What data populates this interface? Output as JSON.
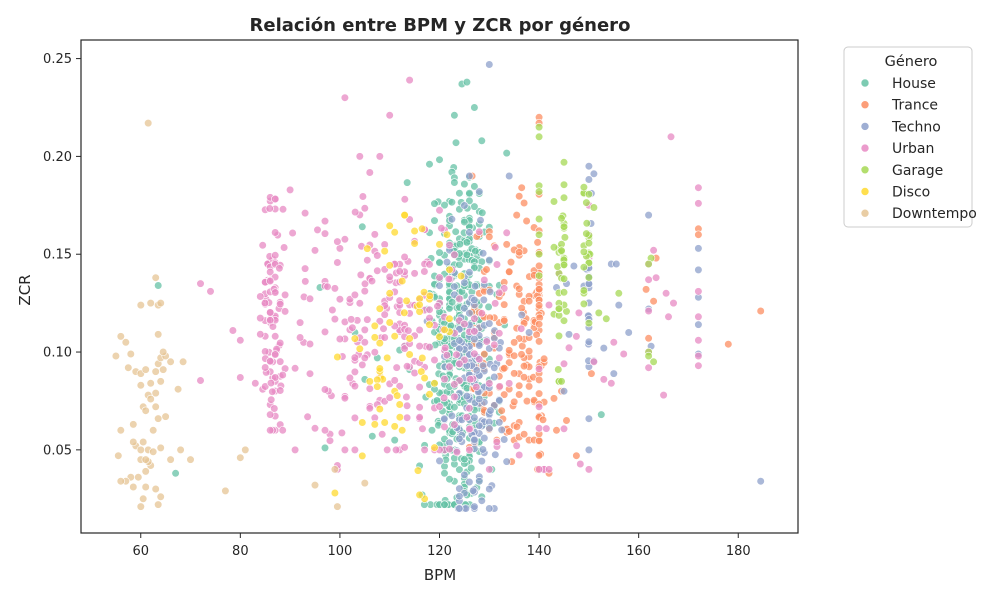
{
  "chart_data": {
    "type": "scatter",
    "title": "Relación entre BPM y ZCR por género",
    "xlabel": "BPM",
    "ylabel": "ZCR",
    "xlim": [
      48,
      192
    ],
    "ylim": [
      0.0075,
      0.2595
    ],
    "xticks": [
      60,
      80,
      100,
      120,
      140,
      160,
      180
    ],
    "yticks": [
      0.05,
      0.1,
      0.15,
      0.2,
      0.25
    ],
    "ytick_labels": [
      "0.05",
      "0.10",
      "0.15",
      "0.20",
      "0.25"
    ],
    "grid": false,
    "legend": {
      "title": "Género",
      "position": "outside-top-right"
    },
    "series": [
      {
        "name": "House",
        "color": "#66c2a5",
        "clusters": [
          {
            "x": 124,
            "xs": 3,
            "y": 0.105,
            "ys": 0.045,
            "n": 420,
            "yc": [
              0.022,
              0.208
            ]
          }
        ],
        "points": [
          [
            63.5,
            0.134
          ],
          [
            67,
            0.038
          ],
          [
            97,
            0.051
          ],
          [
            104.5,
            0.164
          ],
          [
            118,
            0.196
          ],
          [
            123,
            0.221
          ],
          [
            124.5,
            0.237
          ],
          [
            125.5,
            0.238
          ],
          [
            127,
            0.225
          ],
          [
            118.5,
            0.06
          ],
          [
            122,
            0.035
          ],
          [
            125.5,
            0.027
          ],
          [
            128.5,
            0.026
          ],
          [
            116.5,
            0.027
          ],
          [
            152.5,
            0.068
          ],
          [
            106.5,
            0.057
          ],
          [
            105,
            0.086
          ],
          [
            114,
            0.091
          ],
          [
            111,
            0.055
          ],
          [
            112,
            0.101
          ],
          [
            113,
            0.103
          ],
          [
            103,
            0.11
          ],
          [
            107.5,
            0.097
          ],
          [
            96,
            0.133
          ],
          [
            119,
            0.081
          ],
          [
            130.5,
            0.04
          ],
          [
            121,
            0.038
          ],
          [
            131,
            0.072
          ]
        ]
      },
      {
        "name": "Trance",
        "color": "#fc8d62",
        "clusters": [
          {
            "x": 136,
            "xs": 2.5,
            "y": 0.105,
            "ys": 0.035,
            "n": 90,
            "yc": [
              0.055,
              0.19
            ]
          },
          {
            "x": 140,
            "xs": 0.5,
            "y": 0.11,
            "ys": 0.035,
            "n": 50,
            "yc": [
              0.04,
              0.222
            ]
          },
          {
            "x": 128.5,
            "xs": 1.2,
            "y": 0.11,
            "ys": 0.03,
            "n": 40,
            "yc": [
              0.04,
              0.19
            ]
          }
        ],
        "points": [
          [
            140,
            0.22
          ],
          [
            140,
            0.217
          ],
          [
            142,
            0.038
          ],
          [
            147.5,
            0.047
          ],
          [
            143.5,
            0.06
          ],
          [
            144.5,
            0.08
          ],
          [
            145.5,
            0.065
          ],
          [
            150.5,
            0.089
          ],
          [
            161.5,
            0.132
          ],
          [
            162,
            0.107
          ],
          [
            163,
            0.126
          ],
          [
            163.5,
            0.148
          ],
          [
            172,
            0.163
          ],
          [
            172,
            0.16
          ],
          [
            178,
            0.104
          ],
          [
            184.5,
            0.121
          ],
          [
            136.5,
            0.184
          ],
          [
            135.5,
            0.17
          ],
          [
            137.5,
            0.167
          ],
          [
            133.5,
            0.155
          ],
          [
            134,
            0.141
          ],
          [
            131,
            0.102
          ],
          [
            132,
            0.082
          ],
          [
            132.5,
            0.07
          ],
          [
            134.5,
            0.044
          ],
          [
            137,
            0.058
          ]
        ]
      },
      {
        "name": "Techno",
        "color": "#8da0cb",
        "clusters": [
          {
            "x": 126.5,
            "xs": 2.8,
            "y": 0.085,
            "ys": 0.035,
            "n": 170,
            "yc": [
              0.02,
              0.19
            ]
          },
          {
            "x": 150,
            "xs": 0.3,
            "y": 0.13,
            "ys": 0.035,
            "n": 28,
            "yc": [
              0.05,
              0.195
            ]
          }
        ],
        "points": [
          [
            130,
            0.247
          ],
          [
            124,
            0.02
          ],
          [
            127,
            0.021
          ],
          [
            128.5,
            0.024
          ],
          [
            133.5,
            0.044
          ],
          [
            162,
            0.17
          ],
          [
            162,
            0.122
          ],
          [
            162.5,
            0.103
          ],
          [
            172,
            0.153
          ],
          [
            172,
            0.142
          ],
          [
            172,
            0.128
          ],
          [
            172,
            0.114
          ],
          [
            172,
            0.099
          ],
          [
            184.5,
            0.034
          ],
          [
            145.5,
            0.135
          ],
          [
            154.5,
            0.145
          ],
          [
            155,
            0.089
          ],
          [
            155.5,
            0.145
          ],
          [
            156,
            0.124
          ],
          [
            136.5,
            0.119
          ],
          [
            138,
            0.11
          ],
          [
            146,
            0.109
          ],
          [
            153,
            0.102
          ],
          [
            126,
            0.19
          ],
          [
            128,
            0.182
          ],
          [
            145,
            0.08
          ],
          [
            158,
            0.11
          ],
          [
            147,
            0.144
          ],
          [
            143.5,
            0.133
          ],
          [
            132,
            0.102
          ]
        ]
      },
      {
        "name": "Urban",
        "color": "#e78ac3",
        "clusters": [
          {
            "x": 86.5,
            "xs": 1.1,
            "y": 0.115,
            "ys": 0.032,
            "n": 95,
            "yc": [
              0.06,
              0.2
            ]
          },
          {
            "x": 110,
            "xs": 11,
            "y": 0.11,
            "ys": 0.035,
            "n": 240,
            "yc": [
              0.05,
              0.2
            ]
          },
          {
            "x": 131,
            "xs": 7,
            "y": 0.09,
            "ys": 0.035,
            "n": 40,
            "yc": [
              0.04,
              0.17
            ]
          }
        ],
        "points": [
          [
            114,
            0.239
          ],
          [
            101,
            0.23
          ],
          [
            110,
            0.221
          ],
          [
            172,
            0.184
          ],
          [
            172,
            0.176
          ],
          [
            166.5,
            0.21
          ],
          [
            72,
            0.135
          ],
          [
            78.5,
            0.111
          ],
          [
            80,
            0.106
          ],
          [
            80,
            0.087
          ],
          [
            83,
            0.084
          ],
          [
            74,
            0.131
          ],
          [
            99.5,
            0.04
          ],
          [
            99.5,
            0.042
          ],
          [
            97,
            0.06
          ],
          [
            95,
            0.061
          ],
          [
            150,
            0.04
          ],
          [
            140,
            0.04
          ],
          [
            140,
            0.061
          ],
          [
            140,
            0.072
          ],
          [
            162,
            0.121
          ],
          [
            162,
            0.092
          ],
          [
            162,
            0.1
          ],
          [
            162,
            0.137
          ],
          [
            162,
            0.145
          ],
          [
            172,
            0.131
          ],
          [
            172,
            0.118
          ],
          [
            172,
            0.106
          ],
          [
            172,
            0.098
          ],
          [
            172,
            0.093
          ],
          [
            165,
            0.078
          ],
          [
            166,
            0.118
          ],
          [
            167,
            0.125
          ],
          [
            165.5,
            0.13
          ],
          [
            157,
            0.099
          ],
          [
            155,
            0.105
          ],
          [
            153,
            0.086
          ],
          [
            154.5,
            0.084
          ],
          [
            151,
            0.095
          ],
          [
            150,
            0.148
          ],
          [
            150,
            0.16
          ],
          [
            150,
            0.175
          ],
          [
            148,
            0.12
          ],
          [
            145,
            0.094
          ],
          [
            147.5,
            0.108
          ],
          [
            144,
            0.14
          ],
          [
            163,
            0.152
          ],
          [
            163.5,
            0.138
          ]
        ]
      },
      {
        "name": "Garage",
        "color": "#a6d854",
        "clusters": [
          {
            "x": 144.5,
            "xs": 0.4,
            "y": 0.14,
            "ys": 0.03,
            "n": 40,
            "yc": [
              0.085,
              0.197
            ]
          },
          {
            "x": 149.5,
            "xs": 0.4,
            "y": 0.15,
            "ys": 0.025,
            "n": 25,
            "yc": [
              0.09,
              0.188
            ]
          }
        ],
        "points": [
          [
            140,
            0.21
          ],
          [
            140,
            0.215
          ],
          [
            140,
            0.185
          ],
          [
            140,
            0.182
          ],
          [
            140,
            0.168
          ],
          [
            140,
            0.16
          ],
          [
            140,
            0.15
          ],
          [
            140,
            0.139
          ],
          [
            162,
            0.1
          ],
          [
            162,
            0.098
          ],
          [
            162.5,
            0.148
          ],
          [
            162,
            0.145
          ],
          [
            163,
            0.095
          ],
          [
            156,
            0.13
          ],
          [
            153.5,
            0.117
          ],
          [
            152,
            0.12
          ]
        ]
      },
      {
        "name": "Disco",
        "color": "#ffd92f",
        "clusters": [
          {
            "x": 114,
            "xs": 5.5,
            "y": 0.1,
            "ys": 0.035,
            "n": 55,
            "yc": [
              0.025,
              0.17
            ]
          }
        ],
        "points": [
          [
            116,
            0.027
          ],
          [
            107,
            0.063
          ],
          [
            109,
            0.064
          ],
          [
            111,
            0.062
          ],
          [
            112.5,
            0.06
          ],
          [
            104.5,
            0.064
          ],
          [
            106,
            0.085
          ],
          [
            109.5,
            0.097
          ],
          [
            118,
            0.114
          ],
          [
            120,
            0.155
          ],
          [
            121.5,
            0.16
          ],
          [
            116.5,
            0.163
          ],
          [
            113,
            0.17
          ],
          [
            122,
            0.117
          ],
          [
            110,
            0.13
          ]
        ]
      },
      {
        "name": "Downtempo",
        "color": "#e5c494",
        "clusters": [],
        "points": [
          [
            61.5,
            0.217
          ],
          [
            55,
            0.098
          ],
          [
            56,
            0.108
          ],
          [
            57,
            0.105
          ],
          [
            58,
            0.099
          ],
          [
            59,
            0.09
          ],
          [
            57.5,
            0.092
          ],
          [
            60,
            0.089
          ],
          [
            61,
            0.091
          ],
          [
            60,
            0.083
          ],
          [
            61.5,
            0.078
          ],
          [
            62,
            0.084
          ],
          [
            60.5,
            0.072
          ],
          [
            61,
            0.07
          ],
          [
            62,
            0.076
          ],
          [
            63,
            0.079
          ],
          [
            63,
            0.09
          ],
          [
            63.5,
            0.094
          ],
          [
            64,
            0.097
          ],
          [
            64.5,
            0.091
          ],
          [
            65,
            0.098
          ],
          [
            66,
            0.095
          ],
          [
            64,
            0.085
          ],
          [
            67.5,
            0.081
          ],
          [
            58.5,
            0.063
          ],
          [
            63,
            0.072
          ],
          [
            63.5,
            0.066
          ],
          [
            62.5,
            0.06
          ],
          [
            60.5,
            0.054
          ],
          [
            59,
            0.052
          ],
          [
            58.5,
            0.054
          ],
          [
            60,
            0.05
          ],
          [
            61.5,
            0.05
          ],
          [
            62.5,
            0.049
          ],
          [
            62,
            0.042
          ],
          [
            61.5,
            0.044
          ],
          [
            60,
            0.045
          ],
          [
            61,
            0.039
          ],
          [
            59.5,
            0.036
          ],
          [
            58,
            0.036
          ],
          [
            57,
            0.034
          ],
          [
            56,
            0.034
          ],
          [
            55.5,
            0.047
          ],
          [
            58.5,
            0.031
          ],
          [
            61,
            0.031
          ],
          [
            60.5,
            0.025
          ],
          [
            60,
            0.021
          ],
          [
            63.5,
            0.022
          ],
          [
            63,
            0.03
          ],
          [
            64,
            0.026
          ],
          [
            61,
            0.045
          ],
          [
            62,
            0.125
          ],
          [
            63.5,
            0.124
          ],
          [
            64,
            0.125
          ],
          [
            60,
            0.124
          ],
          [
            63,
            0.138
          ],
          [
            63.5,
            0.109
          ],
          [
            64.5,
            0.1
          ],
          [
            65,
            0.067
          ],
          [
            64,
            0.051
          ],
          [
            66,
            0.045
          ],
          [
            68,
            0.05
          ],
          [
            70,
            0.045
          ],
          [
            77,
            0.029
          ],
          [
            80,
            0.046
          ],
          [
            81,
            0.05
          ],
          [
            95,
            0.032
          ],
          [
            99.5,
            0.021
          ],
          [
            105,
            0.033
          ],
          [
            99,
            0.04
          ],
          [
            56,
            0.06
          ],
          [
            68.5,
            0.095
          ]
        ]
      }
    ]
  }
}
